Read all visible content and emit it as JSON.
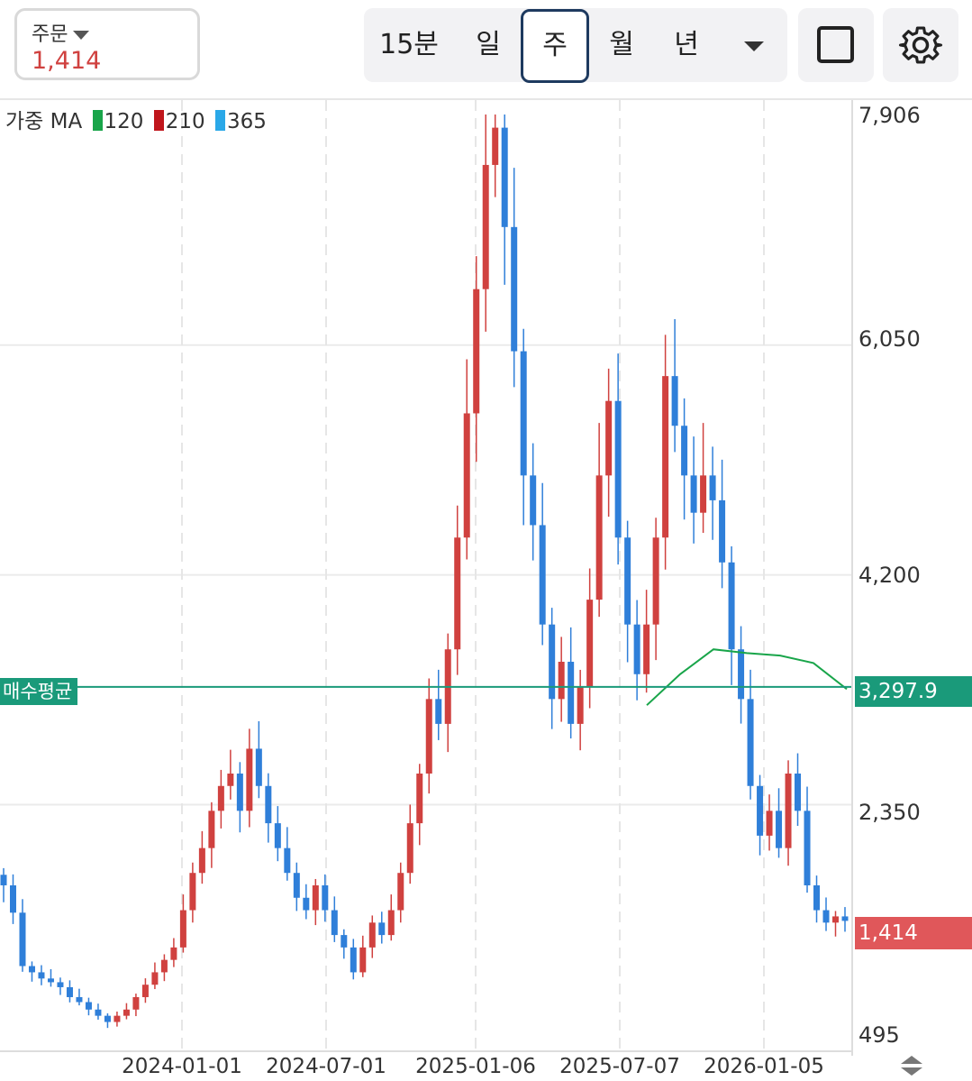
{
  "order": {
    "label": "주문",
    "value": "1,414"
  },
  "timeframes": [
    {
      "label": "15분",
      "selected": false
    },
    {
      "label": "일",
      "selected": false
    },
    {
      "label": "주",
      "selected": true
    },
    {
      "label": "월",
      "selected": false
    },
    {
      "label": "년",
      "selected": false
    }
  ],
  "toolbar": {
    "dropdown_icon": "chevron-down-icon",
    "square_icon": "square-icon",
    "settings_icon": "gear-icon"
  },
  "colors": {
    "up": "#d0413f",
    "down": "#2f7fd9",
    "ma120": "#19a54a",
    "ma210": "#c0161c",
    "ma365": "#2aa8e8",
    "avg": "#1a9a7a"
  },
  "legend": {
    "prefix": "가중 MA",
    "ma120": "120",
    "ma210": "210",
    "ma365": "365"
  },
  "avg_line": {
    "label": "매수평균",
    "value": "3,297.9"
  },
  "last_price": "1,414",
  "chart_data": {
    "type": "candlestick",
    "title": "",
    "y_ticks": [
      "7,906",
      "6,050",
      "4,200",
      "2,350",
      "495"
    ],
    "x_ticks": [
      "2024-01-01",
      "2024-07-01",
      "2025-01-06",
      "2025-07-07",
      "2026-01-05"
    ],
    "ylim": [
      495,
      7906
    ],
    "avg_price": 3297.9,
    "last_close": 1414,
    "weekly_close_path": [
      1700,
      1480,
      1050,
      1000,
      950,
      920,
      880,
      800,
      760,
      700,
      650,
      600,
      650,
      700,
      800,
      900,
      1000,
      1100,
      1200,
      1500,
      1800,
      2000,
      2300,
      2500,
      2600,
      2300,
      2800,
      2500,
      2200,
      2000,
      1800,
      1600,
      1500,
      1700,
      1500,
      1300,
      1200,
      1000,
      1200,
      1400,
      1300,
      1500,
      1800,
      2200,
      2600,
      3200,
      3000,
      3600,
      4500,
      5500,
      6500,
      7500,
      7800,
      7000,
      6000,
      5000,
      4600,
      3800,
      3200,
      3500,
      3000,
      3300,
      4000,
      5000,
      5600,
      4500,
      3800,
      3400,
      3800,
      4500,
      5800,
      5400,
      5000,
      4700,
      5000,
      4800,
      4300,
      3600,
      3200,
      2500,
      2100,
      2300,
      2000,
      2600,
      2300,
      1700,
      1500,
      1400,
      1450,
      1414
    ],
    "ma120_path": [
      3150,
      3400,
      3600,
      3570,
      3550,
      3490,
      3280
    ]
  }
}
